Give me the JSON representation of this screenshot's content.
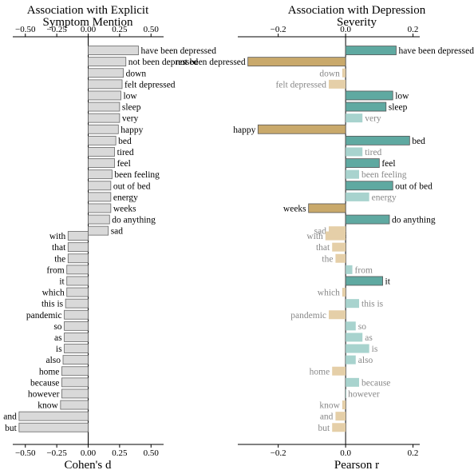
{
  "chart_data": [
    {
      "type": "bar",
      "orientation": "horizontal",
      "title": "Association with Explicit Symptom Mention",
      "title_lines": [
        "Association with Explicit",
        "Symptom Mention"
      ],
      "xlabel": "Cohen's d",
      "xlim": [
        -0.6,
        0.6
      ],
      "xticks": [
        -0.5,
        -0.25,
        0.0,
        0.25,
        0.5
      ],
      "xtick_labels": [
        "−0.50",
        "−0.25",
        "0.00",
        "0.25",
        "0.50"
      ],
      "grid": false,
      "groups": [
        {
          "name": "top",
          "categories": [
            "have been depressed",
            "not been depressed",
            "down",
            "felt depressed",
            "low",
            "sleep",
            "very",
            "happy",
            "bed",
            "tired",
            "feel",
            "been feeling",
            "out of bed",
            "energy",
            "weeks",
            "do anything",
            "sad"
          ],
          "values": [
            0.4,
            0.3,
            0.28,
            0.27,
            0.26,
            0.25,
            0.25,
            0.24,
            0.22,
            0.21,
            0.21,
            0.19,
            0.18,
            0.18,
            0.18,
            0.17,
            0.16
          ]
        },
        {
          "name": "bottom",
          "categories": [
            "with",
            "that",
            "the",
            "from",
            "it",
            "which",
            "this is",
            "pandemic",
            "so",
            "as",
            "is",
            "also",
            "home",
            "because",
            "however",
            "know",
            "and",
            "but"
          ],
          "values": [
            -0.16,
            -0.16,
            -0.16,
            -0.17,
            -0.17,
            -0.17,
            -0.18,
            -0.19,
            -0.19,
            -0.19,
            -0.19,
            -0.2,
            -0.21,
            -0.21,
            -0.21,
            -0.22,
            -0.55,
            -0.55
          ]
        }
      ],
      "colors": {
        "bar": "#d9d9d9",
        "edge": "#666666"
      }
    },
    {
      "type": "bar",
      "orientation": "horizontal",
      "title": "Association with Depression Severity",
      "title_lines": [
        "Association with Depression",
        "Severity"
      ],
      "xlabel": "Pearson r",
      "xlim": [
        -0.32,
        0.22
      ],
      "xticks": [
        -0.2,
        0.0,
        0.2
      ],
      "xtick_labels": [
        "−0.2",
        "0.0",
        "0.2"
      ],
      "grid": false,
      "groups": [
        {
          "name": "top",
          "categories": [
            "have been depressed",
            "not been depressed",
            "down",
            "felt depressed",
            "low",
            "sleep",
            "very",
            "happy",
            "bed",
            "tired",
            "feel",
            "been feeling",
            "out of bed",
            "energy",
            "weeks",
            "do anything",
            "sad"
          ],
          "values": [
            0.15,
            -0.29,
            -0.01,
            -0.05,
            0.14,
            0.12,
            0.05,
            -0.26,
            0.19,
            0.05,
            0.1,
            0.04,
            0.14,
            0.07,
            -0.11,
            0.13,
            -0.05
          ],
          "significant": [
            true,
            true,
            false,
            false,
            true,
            true,
            false,
            true,
            true,
            false,
            true,
            false,
            true,
            false,
            true,
            true,
            false
          ]
        },
        {
          "name": "bottom",
          "categories": [
            "with",
            "that",
            "the",
            "from",
            "it",
            "which",
            "this is",
            "pandemic",
            "so",
            "as",
            "is",
            "also",
            "home",
            "because",
            "however",
            "know",
            "and",
            "but"
          ],
          "values": [
            -0.06,
            -0.04,
            -0.03,
            0.02,
            0.11,
            -0.01,
            0.04,
            -0.05,
            0.03,
            0.05,
            0.07,
            0.03,
            -0.04,
            0.04,
            0.0,
            -0.01,
            -0.03,
            -0.04
          ],
          "significant": [
            false,
            false,
            false,
            false,
            true,
            false,
            false,
            false,
            false,
            false,
            false,
            false,
            false,
            false,
            false,
            false,
            false,
            false
          ]
        }
      ],
      "colors": {
        "positive_sig": "#5fa9a1",
        "positive_nonsig": "#a8d3ce",
        "negative_sig": "#c9a96b",
        "negative_nonsig": "#e5cfa8",
        "edge": "#555555",
        "label_sig": "#000000",
        "label_nonsig": "#888888"
      }
    }
  ]
}
